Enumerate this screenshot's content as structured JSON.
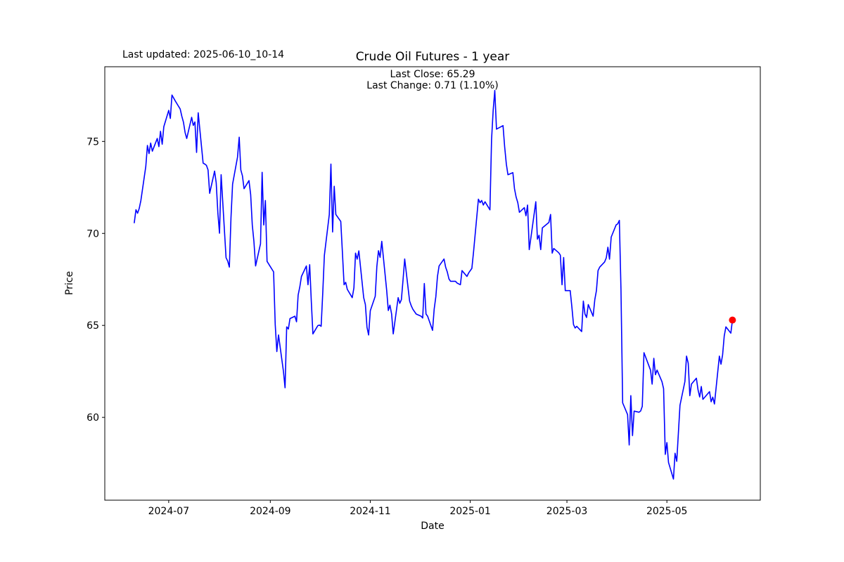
{
  "figure": {
    "last_updated": "Last updated: 2025-06-10_10-14",
    "annotation_line1": "Last Close: 65.29",
    "annotation_line2": "Last Change: 0.71 (1.10%)",
    "background": "#ffffff",
    "last_close": 65.29,
    "last_change": 0.71,
    "last_change_pct": "1.10%"
  },
  "chart_data": {
    "type": "line",
    "title": "Crude Oil Futures - 1 year",
    "xlabel": "Date",
    "ylabel": "Price",
    "legend": "none",
    "grid": false,
    "line_color": "#0000ff",
    "last_point_color": "#ff0000",
    "axis_color": "#000000",
    "xlim": [
      "2024-05-23",
      "2025-06-27"
    ],
    "ylim": [
      55.5,
      79.06
    ],
    "y_ticks": [
      60,
      65,
      70,
      75
    ],
    "x_ticks": [
      {
        "date": "2024-07-01",
        "label": "2024-07"
      },
      {
        "date": "2024-09-01",
        "label": "2024-09"
      },
      {
        "date": "2024-11-01",
        "label": "2024-11"
      },
      {
        "date": "2025-01-01",
        "label": "2025-01"
      },
      {
        "date": "2025-03-01",
        "label": "2025-03"
      },
      {
        "date": "2025-05-01",
        "label": "2025-05"
      }
    ],
    "series": [
      {
        "name": "Close",
        "points": [
          [
            "2024-06-10",
            70.58
          ],
          [
            "2024-06-11",
            71.29
          ],
          [
            "2024-06-12",
            71.1
          ],
          [
            "2024-06-13",
            71.35
          ],
          [
            "2024-06-14",
            71.79
          ],
          [
            "2024-06-17",
            73.64
          ],
          [
            "2024-06-18",
            74.78
          ],
          [
            "2024-06-19",
            74.34
          ],
          [
            "2024-06-20",
            74.91
          ],
          [
            "2024-06-21",
            74.47
          ],
          [
            "2024-06-24",
            75.16
          ],
          [
            "2024-06-25",
            74.72
          ],
          [
            "2024-06-26",
            75.55
          ],
          [
            "2024-06-27",
            74.85
          ],
          [
            "2024-06-28",
            75.8
          ],
          [
            "2024-07-01",
            76.69
          ],
          [
            "2024-07-02",
            76.25
          ],
          [
            "2024-07-03",
            77.52
          ],
          [
            "2024-07-05",
            77.2
          ],
          [
            "2024-07-08",
            76.76
          ],
          [
            "2024-07-09",
            76.37
          ],
          [
            "2024-07-10",
            76.05
          ],
          [
            "2024-07-11",
            75.48
          ],
          [
            "2024-07-12",
            75.16
          ],
          [
            "2024-07-15",
            76.31
          ],
          [
            "2024-07-16",
            75.87
          ],
          [
            "2024-07-17",
            76.06
          ],
          [
            "2024-07-18",
            74.4
          ],
          [
            "2024-07-19",
            76.56
          ],
          [
            "2024-07-22",
            73.82
          ],
          [
            "2024-07-23",
            73.77
          ],
          [
            "2024-07-24",
            73.7
          ],
          [
            "2024-07-25",
            73.45
          ],
          [
            "2024-07-26",
            72.18
          ],
          [
            "2024-07-29",
            73.39
          ],
          [
            "2024-07-30",
            72.75
          ],
          [
            "2024-07-31",
            71.1
          ],
          [
            "2024-08-01",
            70.01
          ],
          [
            "2024-08-02",
            73.19
          ],
          [
            "2024-08-05",
            68.68
          ],
          [
            "2024-08-06",
            68.49
          ],
          [
            "2024-08-07",
            68.17
          ],
          [
            "2024-08-08",
            70.84
          ],
          [
            "2024-08-09",
            72.68
          ],
          [
            "2024-08-12",
            74.15
          ],
          [
            "2024-08-13",
            75.23
          ],
          [
            "2024-08-14",
            73.45
          ],
          [
            "2024-08-15",
            73.13
          ],
          [
            "2024-08-16",
            72.43
          ],
          [
            "2024-08-19",
            72.87
          ],
          [
            "2024-08-20",
            72.11
          ],
          [
            "2024-08-21",
            70.46
          ],
          [
            "2024-08-22",
            69.57
          ],
          [
            "2024-08-23",
            68.23
          ],
          [
            "2024-08-26",
            69.44
          ],
          [
            "2024-08-27",
            73.32
          ],
          [
            "2024-08-28",
            70.46
          ],
          [
            "2024-08-29",
            71.79
          ],
          [
            "2024-08-30",
            68.48
          ],
          [
            "2024-09-03",
            67.91
          ],
          [
            "2024-09-04",
            65.05
          ],
          [
            "2024-09-05",
            63.58
          ],
          [
            "2024-09-06",
            64.48
          ],
          [
            "2024-09-09",
            62.5
          ],
          [
            "2024-09-10",
            61.61
          ],
          [
            "2024-09-11",
            64.92
          ],
          [
            "2024-09-12",
            64.8
          ],
          [
            "2024-09-13",
            65.37
          ],
          [
            "2024-09-16",
            65.5
          ],
          [
            "2024-09-17",
            65.2
          ],
          [
            "2024-09-18",
            66.65
          ],
          [
            "2024-09-19",
            67.1
          ],
          [
            "2024-09-20",
            67.66
          ],
          [
            "2024-09-23",
            68.23
          ],
          [
            "2024-09-24",
            67.21
          ],
          [
            "2024-09-25",
            68.3
          ],
          [
            "2024-09-26",
            66.32
          ],
          [
            "2024-09-27",
            64.54
          ],
          [
            "2024-09-30",
            64.99
          ],
          [
            "2024-10-01",
            65.02
          ],
          [
            "2024-10-02",
            64.95
          ],
          [
            "2024-10-03",
            66.77
          ],
          [
            "2024-10-04",
            68.81
          ],
          [
            "2024-10-07",
            71.03
          ],
          [
            "2024-10-08",
            73.77
          ],
          [
            "2024-10-09",
            70.08
          ],
          [
            "2024-10-10",
            72.56
          ],
          [
            "2024-10-11",
            71.03
          ],
          [
            "2024-10-14",
            70.65
          ],
          [
            "2024-10-15",
            69.0
          ],
          [
            "2024-10-16",
            67.21
          ],
          [
            "2024-10-17",
            67.34
          ],
          [
            "2024-10-18",
            66.96
          ],
          [
            "2024-10-21",
            66.51
          ],
          [
            "2024-10-22",
            67.04
          ],
          [
            "2024-10-23",
            68.93
          ],
          [
            "2024-10-24",
            68.6
          ],
          [
            "2024-10-25",
            69.05
          ],
          [
            "2024-10-28",
            66.51
          ],
          [
            "2024-10-29",
            66.13
          ],
          [
            "2024-10-30",
            64.9
          ],
          [
            "2024-10-31",
            64.48
          ],
          [
            "2024-11-01",
            65.8
          ],
          [
            "2024-11-04",
            66.58
          ],
          [
            "2024-11-05",
            68.2
          ],
          [
            "2024-11-06",
            69.06
          ],
          [
            "2024-11-07",
            68.7
          ],
          [
            "2024-11-08",
            69.57
          ],
          [
            "2024-11-11",
            66.9
          ],
          [
            "2024-11-12",
            65.81
          ],
          [
            "2024-11-13",
            66.1
          ],
          [
            "2024-11-14",
            65.62
          ],
          [
            "2024-11-15",
            64.54
          ],
          [
            "2024-11-18",
            66.51
          ],
          [
            "2024-11-19",
            66.2
          ],
          [
            "2024-11-20",
            66.4
          ],
          [
            "2024-11-21",
            67.5
          ],
          [
            "2024-11-22",
            68.61
          ],
          [
            "2024-11-25",
            66.32
          ],
          [
            "2024-11-26",
            66.07
          ],
          [
            "2024-11-27",
            65.88
          ],
          [
            "2024-11-29",
            65.62
          ],
          [
            "2024-12-02",
            65.5
          ],
          [
            "2024-12-03",
            65.4
          ],
          [
            "2024-12-04",
            67.28
          ],
          [
            "2024-12-05",
            65.62
          ],
          [
            "2024-12-06",
            65.5
          ],
          [
            "2024-12-09",
            64.73
          ],
          [
            "2024-12-10",
            65.88
          ],
          [
            "2024-12-11",
            66.57
          ],
          [
            "2024-12-12",
            67.66
          ],
          [
            "2024-12-13",
            68.23
          ],
          [
            "2024-12-16",
            68.61
          ],
          [
            "2024-12-17",
            68.17
          ],
          [
            "2024-12-18",
            67.9
          ],
          [
            "2024-12-19",
            67.53
          ],
          [
            "2024-12-20",
            67.4
          ],
          [
            "2024-12-23",
            67.4
          ],
          [
            "2024-12-24",
            67.3
          ],
          [
            "2024-12-26",
            67.21
          ],
          [
            "2024-12-27",
            67.98
          ],
          [
            "2024-12-30",
            67.66
          ],
          [
            "2024-12-31",
            67.85
          ],
          [
            "2025-01-02",
            68.1
          ],
          [
            "2025-01-03",
            69.0
          ],
          [
            "2025-01-06",
            71.86
          ],
          [
            "2025-01-07",
            71.67
          ],
          [
            "2025-01-08",
            71.79
          ],
          [
            "2025-01-09",
            71.54
          ],
          [
            "2025-01-10",
            71.72
          ],
          [
            "2025-01-13",
            71.28
          ],
          [
            "2025-01-14",
            75.1
          ],
          [
            "2025-01-15",
            76.69
          ],
          [
            "2025-01-16",
            77.77
          ],
          [
            "2025-01-17",
            75.67
          ],
          [
            "2025-01-21",
            75.86
          ],
          [
            "2025-01-22",
            74.72
          ],
          [
            "2025-01-23",
            73.77
          ],
          [
            "2025-01-24",
            73.19
          ],
          [
            "2025-01-27",
            73.3
          ],
          [
            "2025-01-28",
            72.43
          ],
          [
            "2025-01-29",
            71.98
          ],
          [
            "2025-01-30",
            71.67
          ],
          [
            "2025-01-31",
            71.15
          ],
          [
            "2025-02-03",
            71.4
          ],
          [
            "2025-02-04",
            70.96
          ],
          [
            "2025-02-05",
            71.54
          ],
          [
            "2025-02-06",
            69.12
          ],
          [
            "2025-02-07",
            69.76
          ],
          [
            "2025-02-10",
            71.72
          ],
          [
            "2025-02-11",
            69.69
          ],
          [
            "2025-02-12",
            69.9
          ],
          [
            "2025-02-13",
            69.12
          ],
          [
            "2025-02-14",
            70.3
          ],
          [
            "2025-02-18",
            70.6
          ],
          [
            "2025-02-19",
            71.03
          ],
          [
            "2025-02-20",
            68.93
          ],
          [
            "2025-02-21",
            69.18
          ],
          [
            "2025-02-24",
            68.95
          ],
          [
            "2025-02-25",
            68.82
          ],
          [
            "2025-02-26",
            67.21
          ],
          [
            "2025-02-27",
            68.69
          ],
          [
            "2025-02-28",
            66.89
          ],
          [
            "2025-03-03",
            66.89
          ],
          [
            "2025-03-04",
            66.0
          ],
          [
            "2025-03-05",
            65.05
          ],
          [
            "2025-03-06",
            64.86
          ],
          [
            "2025-03-07",
            64.95
          ],
          [
            "2025-03-10",
            64.67
          ],
          [
            "2025-03-11",
            66.32
          ],
          [
            "2025-03-12",
            65.62
          ],
          [
            "2025-03-13",
            65.43
          ],
          [
            "2025-03-14",
            66.13
          ],
          [
            "2025-03-17",
            65.5
          ],
          [
            "2025-03-18",
            66.4
          ],
          [
            "2025-03-19",
            66.89
          ],
          [
            "2025-03-20",
            67.98
          ],
          [
            "2025-03-21",
            68.17
          ],
          [
            "2025-03-24",
            68.45
          ],
          [
            "2025-03-25",
            68.67
          ],
          [
            "2025-03-26",
            69.25
          ],
          [
            "2025-03-27",
            68.6
          ],
          [
            "2025-03-28",
            69.8
          ],
          [
            "2025-03-31",
            70.46
          ],
          [
            "2025-04-01",
            70.52
          ],
          [
            "2025-04-02",
            70.71
          ],
          [
            "2025-04-03",
            66.95
          ],
          [
            "2025-04-04",
            60.79
          ],
          [
            "2025-04-07",
            60.15
          ],
          [
            "2025-04-08",
            58.5
          ],
          [
            "2025-04-09",
            61.18
          ],
          [
            "2025-04-10",
            59.01
          ],
          [
            "2025-04-11",
            60.34
          ],
          [
            "2025-04-14",
            60.28
          ],
          [
            "2025-04-15",
            60.35
          ],
          [
            "2025-04-16",
            60.6
          ],
          [
            "2025-04-17",
            63.52
          ],
          [
            "2025-04-21",
            62.57
          ],
          [
            "2025-04-22",
            61.81
          ],
          [
            "2025-04-23",
            63.21
          ],
          [
            "2025-04-24",
            62.32
          ],
          [
            "2025-04-25",
            62.57
          ],
          [
            "2025-04-28",
            61.94
          ],
          [
            "2025-04-29",
            61.56
          ],
          [
            "2025-04-30",
            57.99
          ],
          [
            "2025-05-01",
            58.63
          ],
          [
            "2025-05-02",
            57.55
          ],
          [
            "2025-05-05",
            56.65
          ],
          [
            "2025-05-06",
            58.05
          ],
          [
            "2025-05-07",
            57.61
          ],
          [
            "2025-05-08",
            59.13
          ],
          [
            "2025-05-09",
            60.66
          ],
          [
            "2025-05-12",
            61.95
          ],
          [
            "2025-05-13",
            63.33
          ],
          [
            "2025-05-14",
            62.95
          ],
          [
            "2025-05-15",
            61.18
          ],
          [
            "2025-05-16",
            61.81
          ],
          [
            "2025-05-19",
            62.13
          ],
          [
            "2025-05-20",
            61.49
          ],
          [
            "2025-05-21",
            61.11
          ],
          [
            "2025-05-22",
            61.68
          ],
          [
            "2025-05-23",
            60.98
          ],
          [
            "2025-05-27",
            61.4
          ],
          [
            "2025-05-28",
            60.85
          ],
          [
            "2025-05-29",
            61.1
          ],
          [
            "2025-05-30",
            60.73
          ],
          [
            "2025-06-02",
            63.33
          ],
          [
            "2025-06-03",
            62.89
          ],
          [
            "2025-06-04",
            63.4
          ],
          [
            "2025-06-05",
            64.42
          ],
          [
            "2025-06-06",
            64.92
          ],
          [
            "2025-06-09",
            64.58
          ],
          [
            "2025-06-10",
            65.29
          ]
        ]
      }
    ]
  }
}
